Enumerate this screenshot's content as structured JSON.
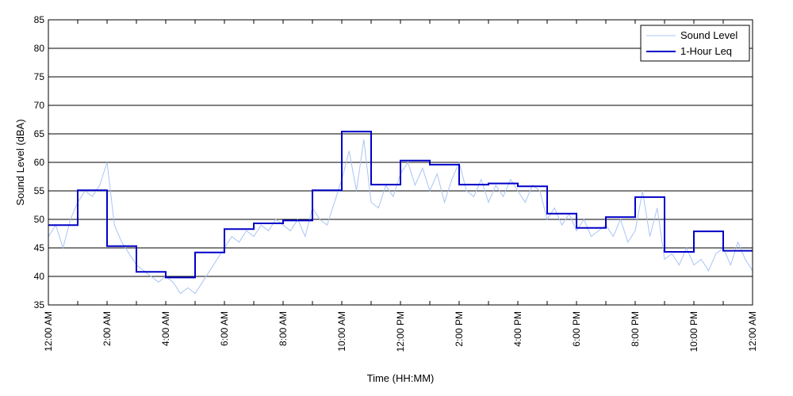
{
  "chart_data": {
    "type": "line",
    "title": "",
    "xlabel": "Time (HH:MM)",
    "ylabel": "Sound Level (dBA)",
    "ylim": [
      35,
      85
    ],
    "yticks": [
      35,
      40,
      45,
      50,
      55,
      60,
      65,
      70,
      75,
      80,
      85
    ],
    "xlim_hours": [
      0,
      24
    ],
    "xtick_hours": [
      0,
      2,
      4,
      6,
      8,
      10,
      12,
      14,
      16,
      18,
      20,
      22,
      24
    ],
    "xtick_labels": [
      "12:00 AM",
      "2:00 AM",
      "4:00 AM",
      "6:00 AM",
      "8:00 AM",
      "10:00 AM",
      "12:00 PM",
      "2:00 PM",
      "4:00 PM",
      "6:00 PM",
      "8:00 PM",
      "10:00 PM",
      "12:00 AM"
    ],
    "grid": "horizontal",
    "legend_position": "top-right",
    "series": [
      {
        "name": "Sound Level",
        "color": "#a9c4f5",
        "style": "thin-line",
        "x_hours": [
          0,
          0.25,
          0.5,
          0.75,
          1,
          1.25,
          1.5,
          1.75,
          2,
          2.25,
          2.5,
          2.75,
          3,
          3.25,
          3.5,
          3.75,
          4,
          4.25,
          4.5,
          4.75,
          5,
          5.25,
          5.5,
          5.75,
          6,
          6.25,
          6.5,
          6.75,
          7,
          7.25,
          7.5,
          7.75,
          8,
          8.25,
          8.5,
          8.75,
          9,
          9.25,
          9.5,
          9.75,
          10,
          10.25,
          10.5,
          10.75,
          11,
          11.25,
          11.5,
          11.75,
          12,
          12.25,
          12.5,
          12.75,
          13,
          13.25,
          13.5,
          13.75,
          14,
          14.25,
          14.5,
          14.75,
          15,
          15.25,
          15.5,
          15.75,
          16,
          16.25,
          16.5,
          16.75,
          17,
          17.25,
          17.5,
          17.75,
          18,
          18.25,
          18.5,
          18.75,
          19,
          19.25,
          19.5,
          19.75,
          20,
          20.25,
          20.5,
          20.75,
          21,
          21.25,
          21.5,
          21.75,
          22,
          22.25,
          22.5,
          22.75,
          23,
          23.25,
          23.5,
          23.75,
          24
        ],
        "values": [
          47,
          49,
          45,
          50,
          53,
          55,
          54,
          56,
          60,
          49,
          46,
          44,
          42,
          41,
          40,
          39,
          40,
          39,
          37,
          38,
          37,
          39,
          41,
          43,
          45,
          47,
          46,
          48,
          47,
          49,
          48,
          50,
          49,
          48,
          50,
          47,
          52,
          50,
          49,
          53,
          57,
          62,
          55,
          64,
          53,
          52,
          56,
          54,
          58,
          60,
          56,
          59,
          55,
          58,
          53,
          57,
          60,
          55,
          54,
          57,
          53,
          56,
          54,
          57,
          55,
          53,
          56,
          55,
          50,
          52,
          49,
          51,
          48,
          50,
          47,
          48,
          49,
          47,
          50,
          46,
          48,
          55,
          47,
          52,
          43,
          44,
          42,
          45,
          42,
          43,
          41,
          44,
          45,
          42,
          46,
          43,
          41
        ]
      },
      {
        "name": "1-Hour Leq",
        "color": "#0000c8",
        "style": "step",
        "hour_starts": [
          0,
          1,
          2,
          3,
          4,
          5,
          6,
          7,
          8,
          9,
          10,
          11,
          12,
          13,
          14,
          15,
          16,
          17,
          18,
          19,
          20,
          21,
          22,
          23
        ],
        "values": [
          49.0,
          55.1,
          45.3,
          40.8,
          39.8,
          44.2,
          48.3,
          49.3,
          49.8,
          55.1,
          65.4,
          56.1,
          60.3,
          59.6,
          56.1,
          56.3,
          55.8,
          51.0,
          48.5,
          50.4,
          53.9,
          44.3,
          47.9,
          44.5
        ]
      }
    ]
  }
}
